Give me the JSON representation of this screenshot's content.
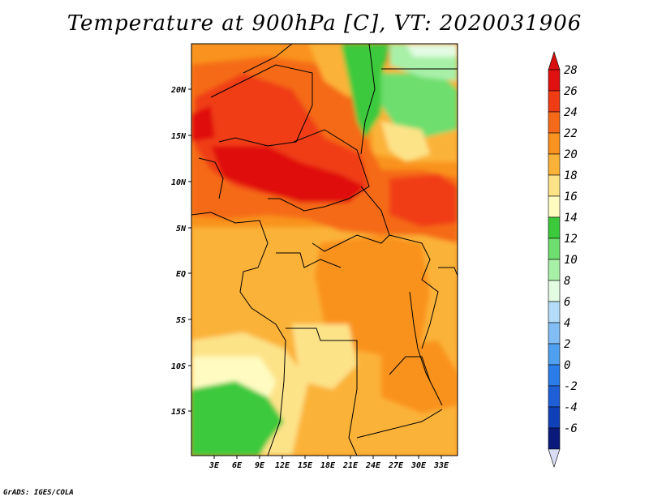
{
  "title": "Temperature at 900hPa [C], VT: 2020031906",
  "footer": "GrADS: IGES/COLA",
  "map": {
    "lon_ticks": [
      "3E",
      "6E",
      "9E",
      "12E",
      "15E",
      "18E",
      "21E",
      "24E",
      "27E",
      "30E",
      "33E"
    ],
    "lat_ticks": [
      "20N",
      "15N",
      "10N",
      "5N",
      "EQ",
      "5S",
      "10S",
      "15S"
    ]
  },
  "colorbar": {
    "labels": [
      "28",
      "26",
      "24",
      "22",
      "20",
      "18",
      "16",
      "14",
      "12",
      "10",
      "8",
      "6",
      "4",
      "2",
      "0",
      "-2",
      "-4",
      "-6"
    ],
    "colors": [
      "#e01010",
      "#f03c14",
      "#f56a19",
      "#f9921e",
      "#fbb238",
      "#fde388",
      "#fffbc1",
      "#3cc93c",
      "#6ede6e",
      "#a8f0a8",
      "#e2fbe2",
      "#b4dcf8",
      "#82bef5",
      "#4fa0f0",
      "#2a7de8",
      "#1e5fd8",
      "#1040b8",
      "#0a1a7a"
    ],
    "overflow_high": "#d81010",
    "overflow_low": "#d8dcf4"
  }
}
